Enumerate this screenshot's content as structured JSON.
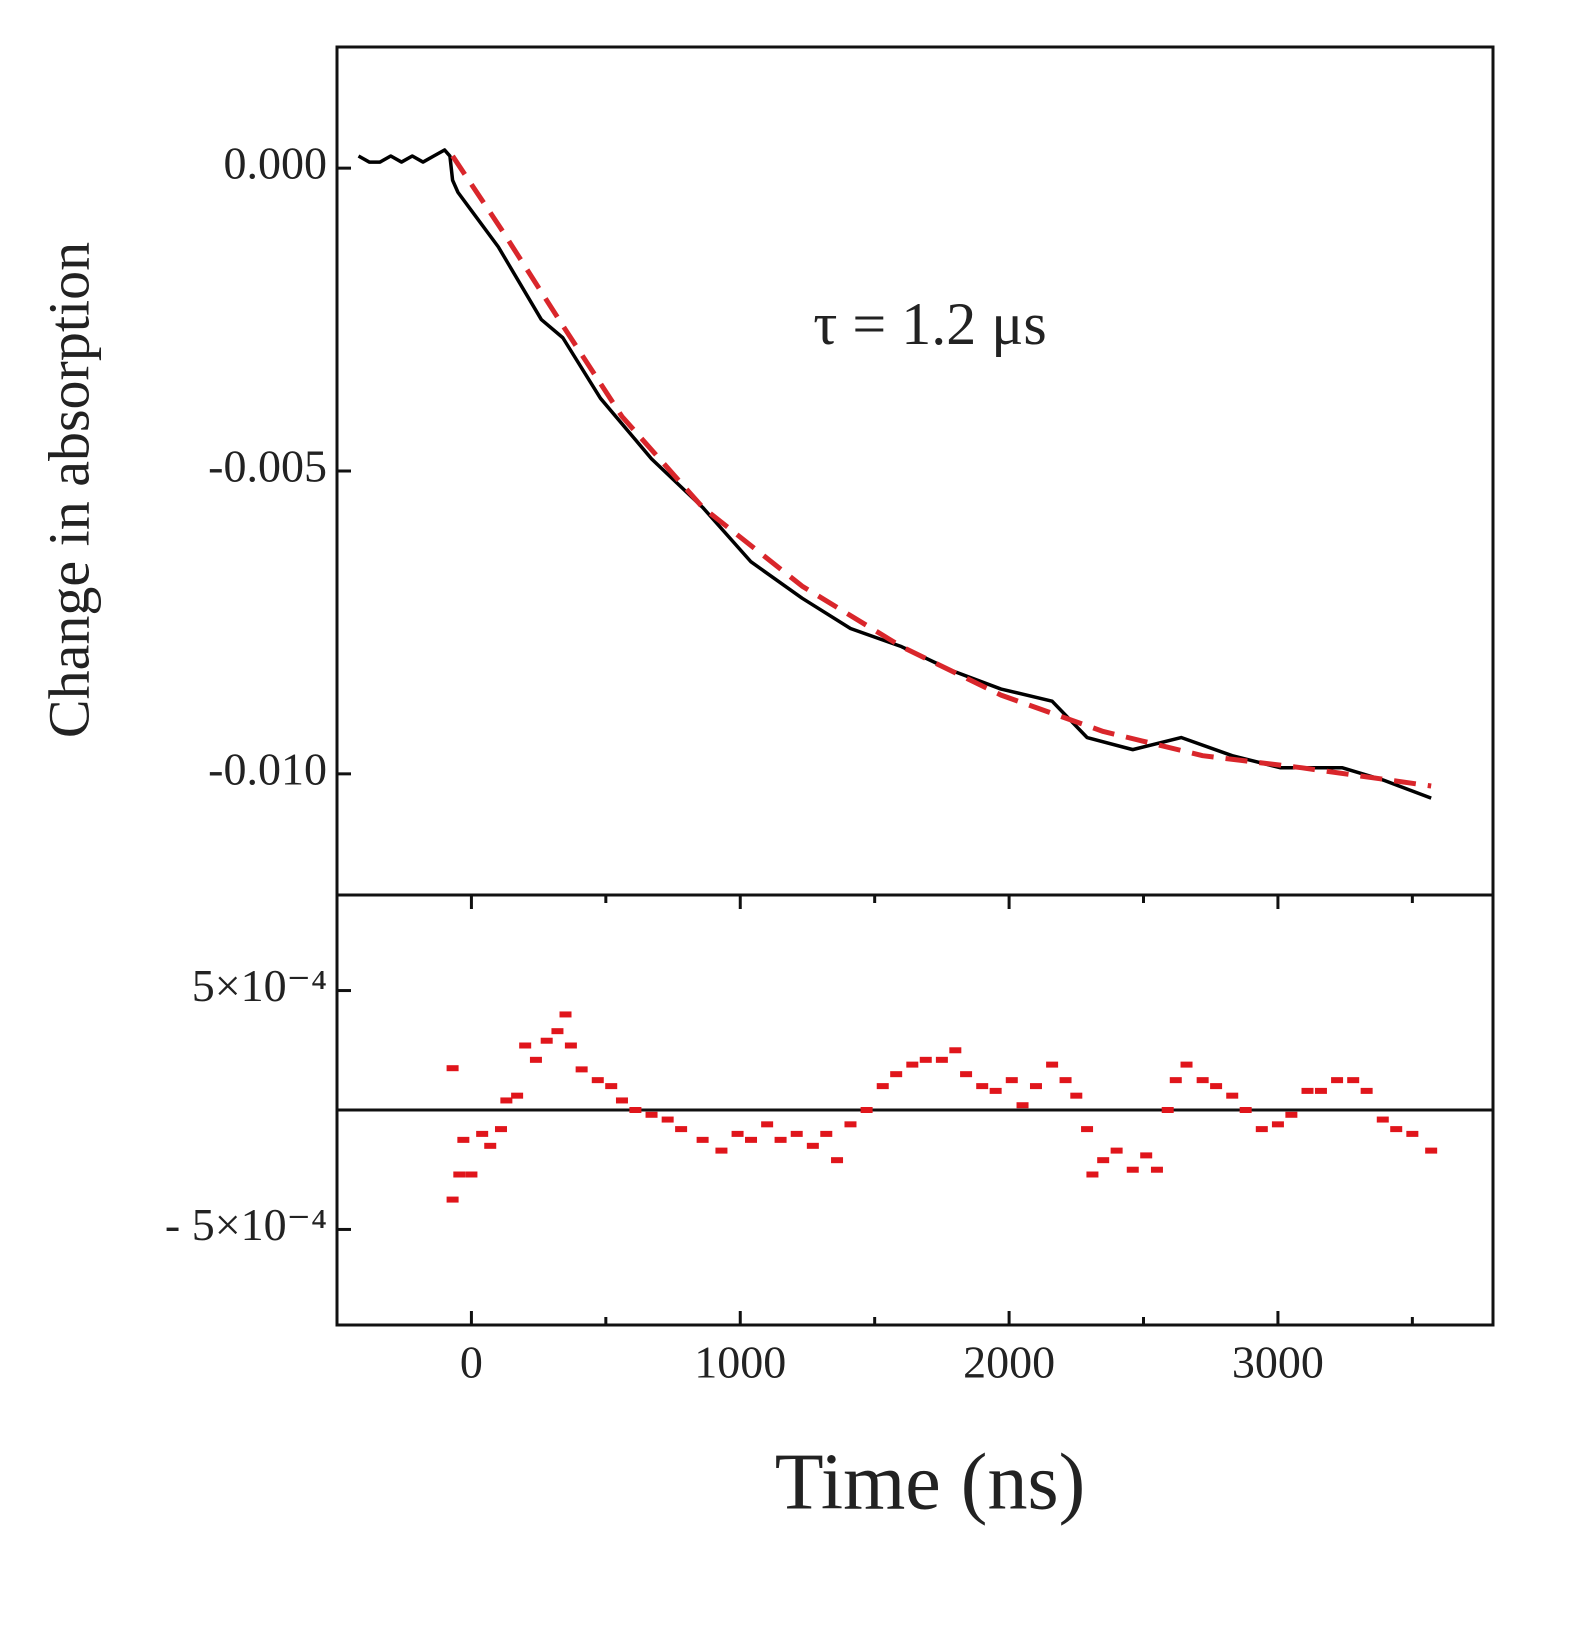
{
  "chart_data": [
    {
      "type": "line",
      "ylabel": "Change in absorption",
      "annotation": "τ = 1.2 μs",
      "xlim": [
        -500,
        3800
      ],
      "ylim": [
        -0.012,
        0.002
      ],
      "yticks": [
        {
          "value": 0,
          "label": "0.000"
        },
        {
          "value": -0.005,
          "label": "-0.005"
        },
        {
          "value": -0.01,
          "label": "-0.010"
        }
      ],
      "series": [
        {
          "color": "#000000",
          "style": "solid",
          "x": [
            -420,
            -380,
            -340,
            -300,
            -260,
            -220,
            -180,
            -140,
            -100,
            -80,
            -70,
            -50,
            0,
            100,
            260,
            340,
            480,
            670,
            860,
            1040,
            1230,
            1410,
            1600,
            1790,
            1970,
            2160,
            2290,
            2460,
            2640,
            2830,
            3010,
            3240,
            3390,
            3570
          ],
          "values": [
            0.0002,
            0.0001,
            0.0001,
            0.0002,
            0.0001,
            0.0002,
            0.0001,
            0.0002,
            0.0003,
            0.0002,
            -0.0002,
            -0.0004,
            -0.0007,
            -0.0013,
            -0.0025,
            -0.0028,
            -0.0038,
            -0.0048,
            -0.0056,
            -0.0065,
            -0.0071,
            -0.0076,
            -0.0079,
            -0.0083,
            -0.0086,
            -0.0088,
            -0.0094,
            -0.0096,
            -0.0094,
            -0.0097,
            -0.0099,
            -0.0099,
            -0.0101,
            -0.0104
          ]
        },
        {
          "color": "#d9262b",
          "style": "dashed",
          "x": [
            -70,
            110,
            340,
            560,
            860,
            1230,
            1600,
            1970,
            2350,
            2720,
            3090,
            3570
          ],
          "values": [
            0.0002,
            -0.001,
            -0.0026,
            -0.0041,
            -0.0056,
            -0.0069,
            -0.0079,
            -0.0087,
            -0.0093,
            -0.0097,
            -0.0099,
            -0.0102
          ]
        }
      ]
    },
    {
      "type": "scatter",
      "xlabel": "Time (ns)",
      "xlim": [
        -500,
        3800
      ],
      "xticks": [
        0,
        1000,
        2000,
        3000
      ],
      "xminorticks": [
        500,
        1500,
        2500,
        3500
      ],
      "ylim": [
        -0.0009,
        0.0009
      ],
      "yticks": [
        {
          "value": 0.0005,
          "label": "5×10⁻⁴"
        },
        {
          "value": -0.0005,
          "label": "- 5×10⁻⁴"
        }
      ],
      "hline": 0,
      "series": [
        {
          "color": "#e0151b",
          "x": [
            -70,
            -70,
            -45,
            -30,
            0,
            40,
            70,
            110,
            130,
            170,
            200,
            240,
            280,
            320,
            350,
            370,
            410,
            470,
            520,
            560,
            610,
            670,
            730,
            780,
            860,
            930,
            990,
            1040,
            1100,
            1150,
            1210,
            1270,
            1320,
            1360,
            1410,
            1470,
            1530,
            1580,
            1640,
            1690,
            1750,
            1800,
            1840,
            1900,
            1950,
            2010,
            2050,
            2100,
            2160,
            2210,
            2250,
            2290,
            2310,
            2350,
            2400,
            2460,
            2510,
            2550,
            2590,
            2620,
            2660,
            2720,
            2770,
            2830,
            2880,
            2940,
            3000,
            3050,
            3110,
            3160,
            3220,
            3280,
            3330,
            3390,
            3440,
            3500,
            3570
          ],
          "values": [
            0.000175,
            -0.000375,
            -0.00027,
            -0.000125,
            -0.00027,
            -0.0001,
            -0.00015,
            -8e-05,
            4e-05,
            6e-05,
            0.00027,
            0.00021,
            0.00029,
            0.00033,
            0.0004,
            0.00027,
            0.00017,
            0.000125,
            0.0001,
            4e-05,
            0,
            -2e-05,
            -4e-05,
            -8e-05,
            -0.000125,
            -0.00017,
            -0.0001,
            -0.000125,
            -6e-05,
            -0.000125,
            -0.0001,
            -0.00015,
            -0.0001,
            -0.00021,
            -6e-05,
            0,
            0.0001,
            0.00015,
            0.00019,
            0.00021,
            0.00021,
            0.00025,
            0.00015,
            0.0001,
            8e-05,
            0.000125,
            2e-05,
            0.0001,
            0.00019,
            0.000125,
            6e-05,
            -8e-05,
            -0.00027,
            -0.00021,
            -0.00017,
            -0.00025,
            -0.00019,
            -0.00025,
            0,
            0.000125,
            0.00019,
            0.000125,
            0.0001,
            6e-05,
            0,
            -8e-05,
            -6e-05,
            -2e-05,
            8e-05,
            8e-05,
            0.000125,
            0.000125,
            8e-05,
            -4e-05,
            -8e-05,
            -0.0001,
            -0.00017
          ]
        }
      ]
    }
  ]
}
